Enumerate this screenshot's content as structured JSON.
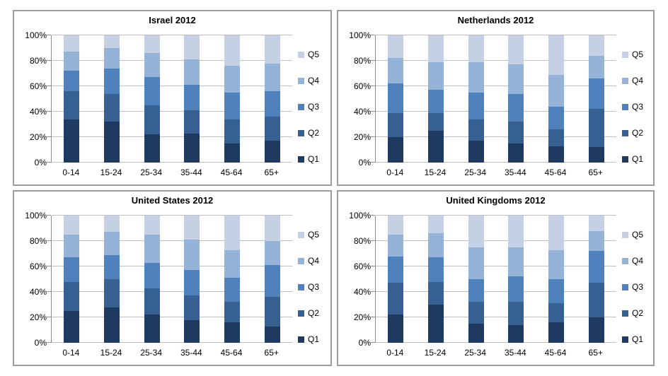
{
  "page": {
    "background": "#ffffff"
  },
  "colors": {
    "Q1": "#1f3a60",
    "Q2": "#366092",
    "Q3": "#4f81bd",
    "Q4": "#95b3d7",
    "Q5": "#c6d0e5",
    "gridline": "#bfbfbf",
    "axis": "#8c8c8c",
    "chart_border": "#9d9d9d",
    "text": "#000000"
  },
  "y_axis": {
    "ticks": [
      "0%",
      "20%",
      "40%",
      "60%",
      "80%",
      "100%"
    ]
  },
  "legend_order": [
    "Q5",
    "Q4",
    "Q3",
    "Q2",
    "Q1"
  ],
  "chart_data": [
    {
      "type": "bar",
      "stacked": true,
      "units": "percent",
      "title": "Israel 2012",
      "categories": [
        "0-14",
        "15-24",
        "25-34",
        "35-44",
        "45-64",
        "65+"
      ],
      "series": [
        {
          "name": "Q1",
          "values": [
            34,
            32,
            22,
            23,
            15,
            17
          ]
        },
        {
          "name": "Q2",
          "values": [
            22,
            22,
            23,
            18,
            19,
            19
          ]
        },
        {
          "name": "Q3",
          "values": [
            16,
            20,
            22,
            20,
            21,
            20
          ]
        },
        {
          "name": "Q4",
          "values": [
            15,
            16,
            19,
            20,
            21,
            22
          ]
        },
        {
          "name": "Q5",
          "values": [
            13,
            10,
            14,
            19,
            24,
            22
          ]
        }
      ],
      "ylim": [
        0,
        100
      ],
      "grid": true,
      "legend_position": "right"
    },
    {
      "type": "bar",
      "stacked": true,
      "units": "percent",
      "title": "Netherlands 2012",
      "categories": [
        "0-14",
        "15-24",
        "25-34",
        "35-44",
        "45-64",
        "65+"
      ],
      "series": [
        {
          "name": "Q1",
          "values": [
            20,
            25,
            17,
            15,
            13,
            12
          ]
        },
        {
          "name": "Q2",
          "values": [
            19,
            14,
            17,
            17,
            13,
            30
          ]
        },
        {
          "name": "Q3",
          "values": [
            23,
            18,
            21,
            22,
            18,
            24
          ]
        },
        {
          "name": "Q4",
          "values": [
            20,
            22,
            24,
            23,
            25,
            18
          ]
        },
        {
          "name": "Q5",
          "values": [
            18,
            21,
            21,
            23,
            31,
            16
          ]
        }
      ],
      "ylim": [
        0,
        100
      ],
      "grid": true,
      "legend_position": "right"
    },
    {
      "type": "bar",
      "stacked": true,
      "units": "percent",
      "title": "United States 2012",
      "categories": [
        "0-14",
        "15-24",
        "25-34",
        "35-44",
        "45-64",
        "65+"
      ],
      "series": [
        {
          "name": "Q1",
          "values": [
            25,
            28,
            22,
            18,
            16,
            13
          ]
        },
        {
          "name": "Q2",
          "values": [
            23,
            22,
            21,
            19,
            16,
            23
          ]
        },
        {
          "name": "Q3",
          "values": [
            19,
            19,
            20,
            20,
            19,
            25
          ]
        },
        {
          "name": "Q4",
          "values": [
            18,
            18,
            22,
            24,
            22,
            19
          ]
        },
        {
          "name": "Q5",
          "values": [
            15,
            13,
            15,
            19,
            27,
            20
          ]
        }
      ],
      "ylim": [
        0,
        100
      ],
      "grid": true,
      "legend_position": "right"
    },
    {
      "type": "bar",
      "stacked": true,
      "units": "percent",
      "title": "United Kingdoms 2012",
      "categories": [
        "0-14",
        "15-24",
        "25-34",
        "35-44",
        "45-64",
        "65+"
      ],
      "series": [
        {
          "name": "Q1",
          "values": [
            22,
            30,
            15,
            14,
            16,
            20
          ]
        },
        {
          "name": "Q2",
          "values": [
            25,
            18,
            17,
            18,
            15,
            27
          ]
        },
        {
          "name": "Q3",
          "values": [
            21,
            19,
            18,
            20,
            19,
            25
          ]
        },
        {
          "name": "Q4",
          "values": [
            17,
            19,
            25,
            23,
            23,
            16
          ]
        },
        {
          "name": "Q5",
          "values": [
            15,
            14,
            25,
            25,
            27,
            12
          ]
        }
      ],
      "ylim": [
        0,
        100
      ],
      "grid": true,
      "legend_position": "right"
    }
  ]
}
